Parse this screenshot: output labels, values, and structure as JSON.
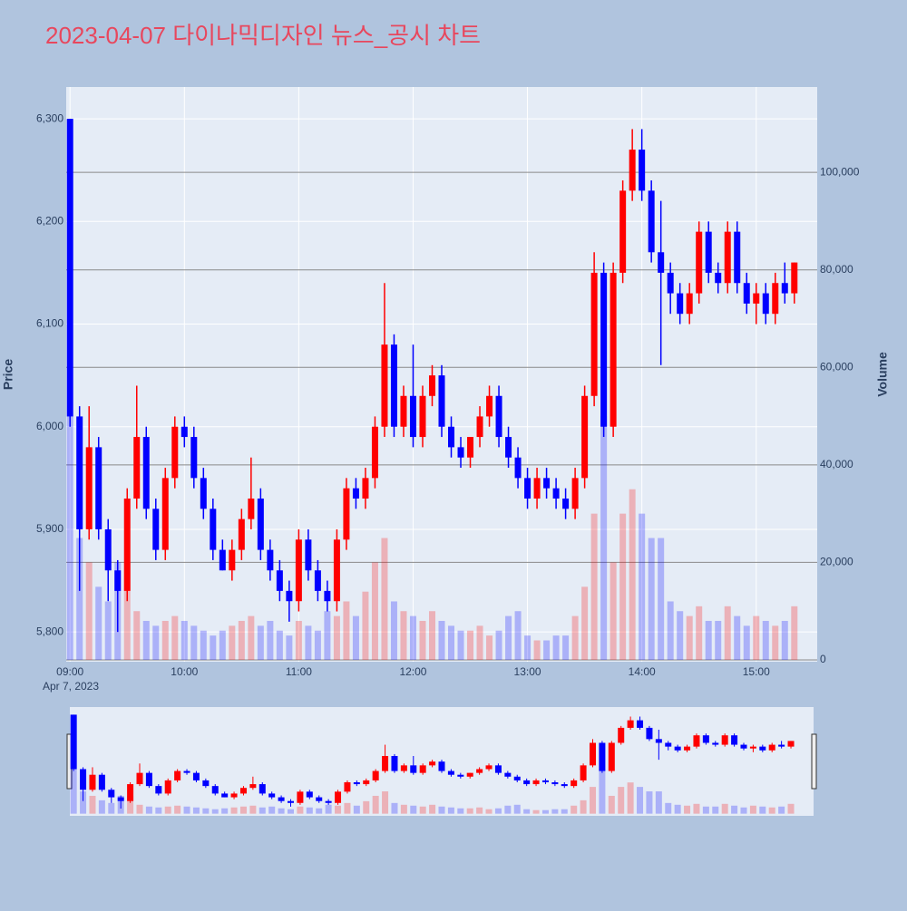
{
  "chart_data": {
    "type": "candlestick",
    "title": "2023-04-07 다이나믹디자인 뉴스_공시 차트",
    "y_title": "Price",
    "y2_title": "Volume",
    "date_label": "Apr 7, 2023",
    "increasing_color": "#ff0000",
    "decreasing_color": "#0000ff",
    "xlim": [
      "08:58",
      "15:32"
    ],
    "xticks": [
      "09:00",
      "10:00",
      "11:00",
      "12:00",
      "13:00",
      "14:00",
      "15:00"
    ],
    "ylim": [
      5771,
      6331
    ],
    "yticks": [
      {
        "value": 5800,
        "label": "5,800"
      },
      {
        "value": 5900,
        "label": "5,900"
      },
      {
        "value": 6000,
        "label": "6,000"
      },
      {
        "value": 6100,
        "label": "6,100"
      },
      {
        "value": 6200,
        "label": "6,200"
      },
      {
        "value": 6300,
        "label": "6,300"
      }
    ],
    "y2lim": [
      -370,
      117500
    ],
    "y2ticks": [
      0,
      {
        "value": 20000,
        "label": "20,000"
      },
      {
        "value": 40000,
        "label": "40,000"
      },
      {
        "value": 60000,
        "label": "60,000"
      },
      {
        "value": 80000,
        "label": "80,000"
      },
      {
        "value": 100000,
        "label": "100,000"
      }
    ],
    "grid": true,
    "x": [
      "09:00",
      "09:05",
      "09:10",
      "09:15",
      "09:20",
      "09:25",
      "09:30",
      "09:35",
      "09:40",
      "09:45",
      "09:50",
      "09:55",
      "10:00",
      "10:05",
      "10:10",
      "10:15",
      "10:20",
      "10:25",
      "10:30",
      "10:35",
      "10:40",
      "10:45",
      "10:50",
      "10:55",
      "11:00",
      "11:05",
      "11:10",
      "11:15",
      "11:20",
      "11:25",
      "11:30",
      "11:35",
      "11:40",
      "11:45",
      "11:50",
      "11:55",
      "12:00",
      "12:05",
      "12:10",
      "12:15",
      "12:20",
      "12:25",
      "12:30",
      "12:35",
      "12:40",
      "12:45",
      "12:50",
      "12:55",
      "13:00",
      "13:05",
      "13:10",
      "13:15",
      "13:20",
      "13:25",
      "13:30",
      "13:35",
      "13:40",
      "13:45",
      "13:50",
      "13:55",
      "14:00",
      "14:05",
      "14:10",
      "14:15",
      "14:20",
      "14:25",
      "14:30",
      "14:35",
      "14:40",
      "14:45",
      "14:50",
      "14:55",
      "15:00",
      "15:05",
      "15:10",
      "15:15",
      "15:20"
    ],
    "open": [
      6300,
      6010,
      5900,
      5980,
      5900,
      5860,
      5840,
      5930,
      5990,
      5920,
      5880,
      5950,
      6000,
      5990,
      5950,
      5920,
      5880,
      5860,
      5880,
      5910,
      5930,
      5880,
      5860,
      5840,
      5830,
      5890,
      5860,
      5840,
      5830,
      5890,
      5940,
      5930,
      5950,
      6000,
      6080,
      6000,
      6030,
      5990,
      6030,
      6050,
      6000,
      5980,
      5970,
      5990,
      6010,
      6030,
      5990,
      5970,
      5950,
      5930,
      5950,
      5940,
      5930,
      5920,
      5950,
      6030,
      6150,
      6000,
      6150,
      6230,
      6270,
      6230,
      6170,
      6150,
      6130,
      6110,
      6130,
      6190,
      6150,
      6140,
      6190,
      6140,
      6120,
      6130,
      6110,
      6140,
      6130
    ],
    "high": [
      6300,
      6020,
      6020,
      5990,
      5910,
      5870,
      5940,
      6040,
      6000,
      5930,
      5960,
      6010,
      6010,
      6000,
      5960,
      5930,
      5890,
      5890,
      5920,
      5970,
      5940,
      5890,
      5870,
      5850,
      5900,
      5900,
      5870,
      5850,
      5900,
      5950,
      5950,
      5960,
      6010,
      6140,
      6090,
      6040,
      6080,
      6040,
      6060,
      6060,
      6010,
      5990,
      5990,
      6020,
      6040,
      6040,
      6000,
      5980,
      5960,
      5960,
      5960,
      5950,
      5940,
      5960,
      6040,
      6170,
      6160,
      6160,
      6240,
      6290,
      6290,
      6240,
      6220,
      6160,
      6140,
      6140,
      6200,
      6200,
      6160,
      6200,
      6200,
      6150,
      6140,
      6140,
      6150,
      6160,
      6160
    ],
    "low": [
      6000,
      5840,
      5890,
      5890,
      5830,
      5800,
      5830,
      5920,
      5910,
      5870,
      5870,
      5940,
      5980,
      5940,
      5910,
      5870,
      5860,
      5850,
      5870,
      5900,
      5870,
      5850,
      5830,
      5810,
      5820,
      5850,
      5830,
      5820,
      5820,
      5880,
      5920,
      5920,
      5940,
      5990,
      5990,
      5990,
      5980,
      5980,
      6020,
      5990,
      5970,
      5960,
      5960,
      5980,
      6000,
      5980,
      5960,
      5940,
      5920,
      5920,
      5930,
      5920,
      5910,
      5910,
      5940,
      6020,
      5990,
      5990,
      6140,
      6220,
      6220,
      6160,
      6060,
      6110,
      6100,
      6100,
      6120,
      6140,
      6130,
      6130,
      6130,
      6110,
      6100,
      6100,
      6100,
      6120,
      6120
    ],
    "close": [
      6010,
      5900,
      5980,
      5900,
      5860,
      5840,
      5930,
      5990,
      5920,
      5880,
      5950,
      6000,
      5990,
      5950,
      5920,
      5880,
      5860,
      5880,
      5910,
      5930,
      5880,
      5860,
      5840,
      5830,
      5890,
      5860,
      5840,
      5830,
      5890,
      5940,
      5930,
      5950,
      6000,
      6080,
      6000,
      6030,
      5990,
      6030,
      6050,
      6000,
      5980,
      5970,
      5990,
      6010,
      6030,
      5990,
      5970,
      5950,
      5930,
      5950,
      5940,
      5930,
      5920,
      5950,
      6030,
      6150,
      6000,
      6150,
      6230,
      6270,
      6230,
      6170,
      6150,
      6130,
      6110,
      6130,
      6190,
      6150,
      6140,
      6190,
      6140,
      6120,
      6130,
      6110,
      6140,
      6130,
      6160
    ],
    "volume": [
      50000,
      25000,
      20000,
      15000,
      12000,
      20000,
      20000,
      10000,
      8000,
      7000,
      8000,
      9000,
      8000,
      7000,
      6000,
      5000,
      6000,
      7000,
      8000,
      9000,
      7000,
      8000,
      6000,
      5000,
      8000,
      7000,
      6000,
      10000,
      9000,
      12000,
      9000,
      14000,
      20000,
      25000,
      12000,
      10000,
      9000,
      8000,
      10000,
      8000,
      7000,
      6000,
      6000,
      7000,
      5000,
      6000,
      9000,
      10000,
      5000,
      4000,
      4000,
      5000,
      5000,
      9000,
      15000,
      30000,
      50000,
      20000,
      30000,
      35000,
      30000,
      25000,
      25000,
      12000,
      10000,
      9000,
      11000,
      8000,
      8000,
      11000,
      9000,
      7000,
      9000,
      8000,
      7000,
      8000,
      11000
    ]
  }
}
